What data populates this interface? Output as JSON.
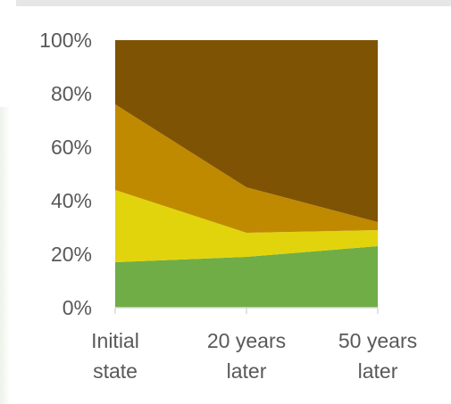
{
  "chart_data": {
    "type": "area",
    "stacked": "percent",
    "categories": [
      [
        "Initial",
        "state"
      ],
      [
        "20 years",
        "later"
      ],
      [
        "50 years",
        "later"
      ]
    ],
    "series": [
      {
        "values": [
          17,
          19,
          23
        ],
        "color": "#70ad47"
      },
      {
        "values": [
          27,
          9,
          6
        ],
        "color": "#e2d40c"
      },
      {
        "values": [
          32,
          17,
          3
        ],
        "color": "#bf8a00"
      },
      {
        "values": [
          24,
          55,
          68
        ],
        "color": "#7f5304"
      }
    ],
    "yticks": [
      "0%",
      "20%",
      "40%",
      "60%",
      "80%",
      "100%"
    ],
    "ylim": [
      0,
      100
    ],
    "grid": false,
    "legend": "none"
  }
}
